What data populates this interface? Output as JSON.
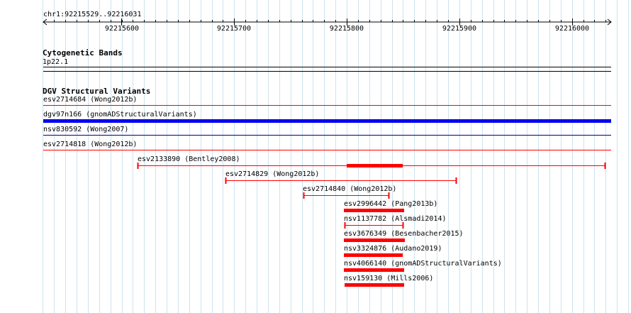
{
  "ruler": {
    "range": "chr1:92215529..92216031",
    "ticks": [
      "92215600",
      "92215700",
      "92215800",
      "92215900",
      "92216000"
    ]
  },
  "cytobands": {
    "title": "Cytogenetic Bands",
    "band": "1p22.1"
  },
  "dgv": {
    "title": "DGV Structural Variants",
    "features": [
      {
        "label": "esv2714684 (Wong2012b)",
        "color": "#ff0000"
      },
      {
        "label": "dgv97n166 (gnomADStructuralVariants)",
        "color": "#0000ee"
      },
      {
        "label": "nsv830592 (Wong2007)",
        "color": "#000080"
      },
      {
        "label": "esv2714818 (Wong2012b)",
        "color": "#ff0000"
      },
      {
        "label": "esv2133890 (Bentley2008)",
        "color": "#ff0000"
      },
      {
        "label": "esv2714829 (Wong2012b)",
        "color": "#ff0000"
      },
      {
        "label": "esv2714840 (Wong2012b)",
        "color": "#ff0000"
      },
      {
        "label": "esv2996442 (Pang2013b)",
        "color": "#ff0000"
      },
      {
        "label": "nsv1137782 (Alsmadi2014)",
        "color": "#ff0000"
      },
      {
        "label": "esv3676349 (Besenbacher2015)",
        "color": "#ff0000"
      },
      {
        "label": "nsv3324876 (Audano2019)",
        "color": "#ff0000"
      },
      {
        "label": "nsv4066140 (gnomADStructuralVariants)",
        "color": "#ff0000"
      },
      {
        "label": "nsv159130 (Mills2006)",
        "color": "#ff0000"
      }
    ]
  }
}
